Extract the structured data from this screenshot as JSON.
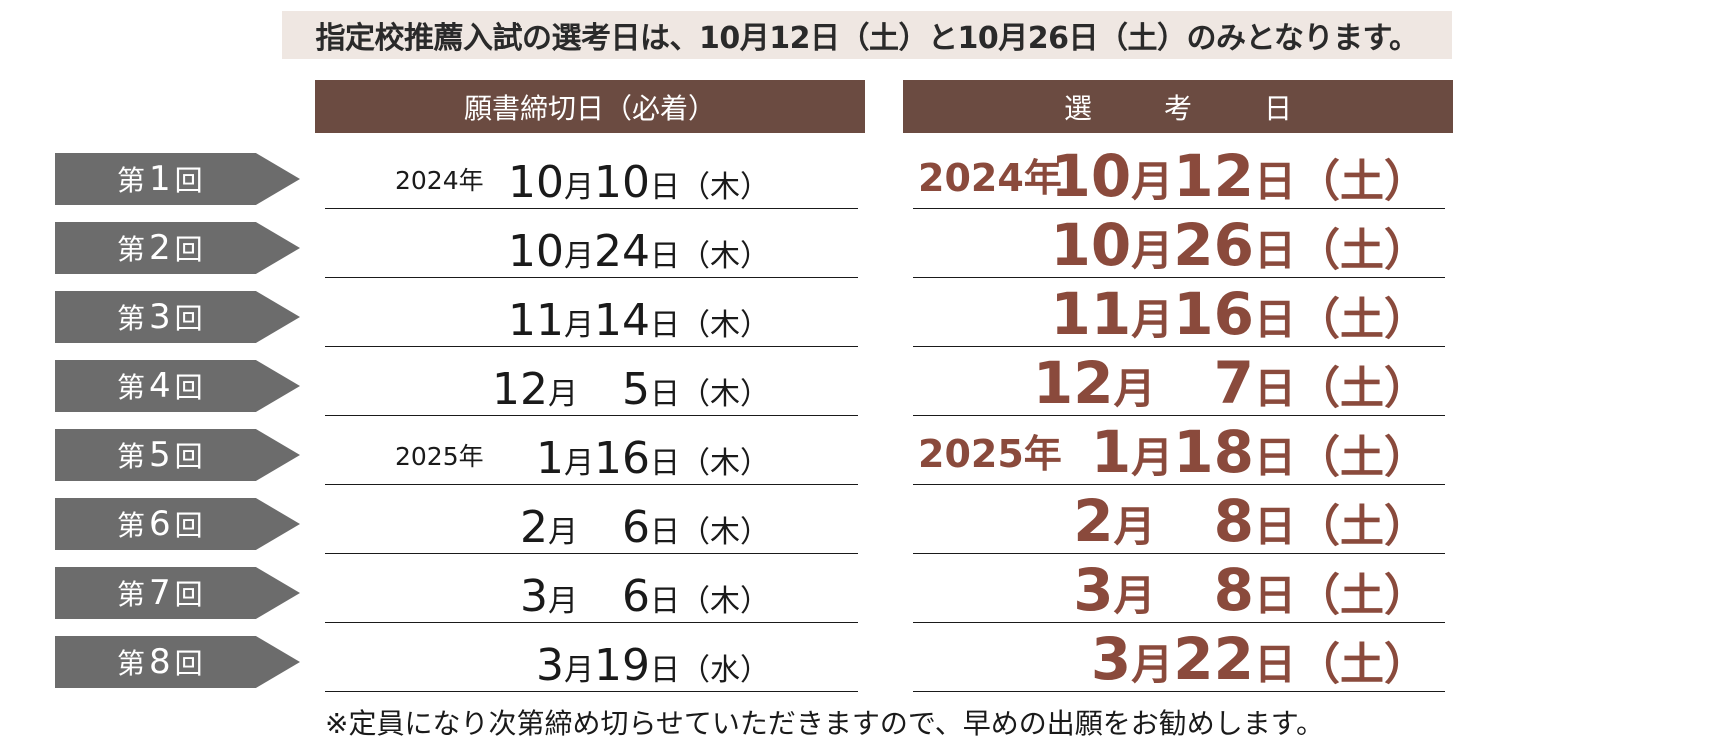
{
  "notice": "指定校推薦入試の選考日は、10月12日（土）と10月26日（土）のみとなります。",
  "headers": {
    "deadline": "願書締切日（必着）",
    "exam": "選　考　日"
  },
  "rows": [
    {
      "tag_prefix": "第",
      "tag_num": "1",
      "tag_suffix": "回",
      "d_year": "2024年",
      "d_month": "10",
      "d_day": "10",
      "d_weekday": "（木）",
      "e_year": "2024年",
      "e_month": "10",
      "e_day": "12",
      "e_weekday": "（土）"
    },
    {
      "tag_prefix": "第",
      "tag_num": "2",
      "tag_suffix": "回",
      "d_year": "",
      "d_month": "10",
      "d_day": "24",
      "d_weekday": "（木）",
      "e_year": "",
      "e_month": "10",
      "e_day": "26",
      "e_weekday": "（土）"
    },
    {
      "tag_prefix": "第",
      "tag_num": "3",
      "tag_suffix": "回",
      "d_year": "",
      "d_month": "11",
      "d_day": "14",
      "d_weekday": "（木）",
      "e_year": "",
      "e_month": "11",
      "e_day": "16",
      "e_weekday": "（土）"
    },
    {
      "tag_prefix": "第",
      "tag_num": "4",
      "tag_suffix": "回",
      "d_year": "",
      "d_month": "12",
      "d_day": "　5",
      "d_weekday": "（木）",
      "e_year": "",
      "e_month": "12",
      "e_day": "　7",
      "e_weekday": "（土）"
    },
    {
      "tag_prefix": "第",
      "tag_num": "5",
      "tag_suffix": "回",
      "d_year": "2025年",
      "d_month": "1",
      "d_day": "16",
      "d_weekday": "（木）",
      "e_year": "2025年",
      "e_month": "1",
      "e_day": "18",
      "e_weekday": "（土）"
    },
    {
      "tag_prefix": "第",
      "tag_num": "6",
      "tag_suffix": "回",
      "d_year": "",
      "d_month": "2",
      "d_day": "　6",
      "d_weekday": "（木）",
      "e_year": "",
      "e_month": "2",
      "e_day": "　8",
      "e_weekday": "（土）"
    },
    {
      "tag_prefix": "第",
      "tag_num": "7",
      "tag_suffix": "回",
      "d_year": "",
      "d_month": "3",
      "d_day": "　6",
      "d_weekday": "（木）",
      "e_year": "",
      "e_month": "3",
      "e_day": "　8",
      "e_weekday": "（土）"
    },
    {
      "tag_prefix": "第",
      "tag_num": "8",
      "tag_suffix": "回",
      "d_year": "",
      "d_month": "3",
      "d_day": "19",
      "d_weekday": "（水）",
      "e_year": "",
      "e_month": "3",
      "e_day": "22",
      "e_weekday": "（土）"
    }
  ],
  "month_unit": "月",
  "day_unit": "日",
  "footnote": "※定員になり次第締め切らせていただきますので、早めの出願をお勧めします。",
  "colors": {
    "header_bg": "#6b4b41",
    "tag_bg": "#6c6c6c",
    "accent": "#8a4a3c",
    "notice_bg": "#efe7e2"
  }
}
